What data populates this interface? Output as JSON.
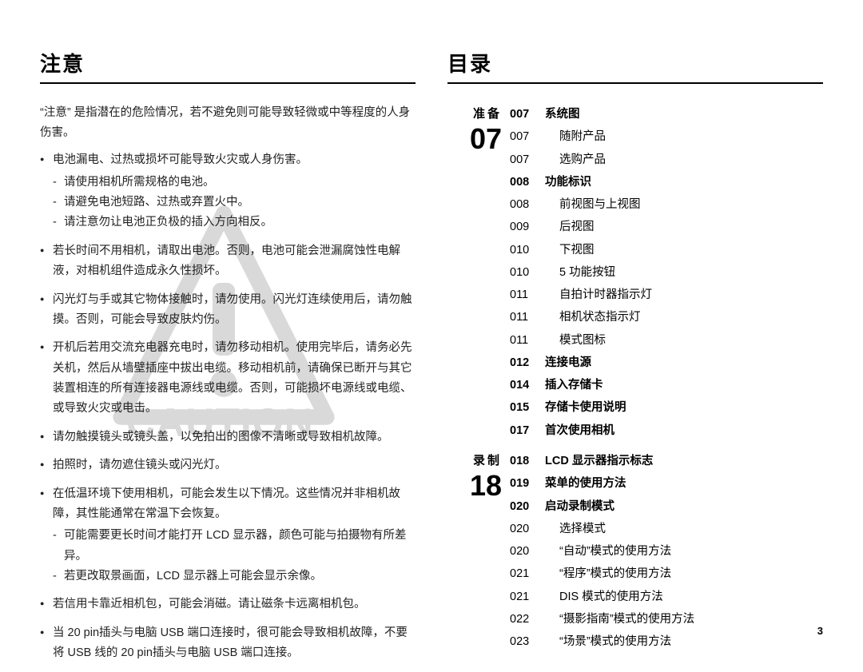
{
  "left": {
    "heading": "注意",
    "intro": "“注意” 是指潜在的危险情况，若不避免则可能导致轻微或中等程度的人身伤害。",
    "bullets": [
      {
        "text": "电池漏电、过热或损坏可能导致火灾或人身伤害。",
        "sub": [
          "请使用相机所需规格的电池。",
          "请避免电池短路、过热或弃置火中。",
          "请注意勿让电池正负极的插入方向相反。"
        ]
      },
      {
        "text": "若长时间不用相机，请取出电池。否则，电池可能会泄漏腐蚀性电解液，对相机组件造成永久性损坏。"
      },
      {
        "text": "闪光灯与手或其它物体接触时，请勿使用。闪光灯连续使用后，请勿触摸。否则，可能会导致皮肤灼伤。"
      },
      {
        "text": "开机后若用交流充电器充电时，请勿移动相机。使用完毕后，请务必先关机，然后从墙壁插座中拔出电缆。移动相机前，请确保已断开与其它装置相连的所有连接器电源线或电缆。否则，可能损坏电源线或电缆、或导致火灾或电击。"
      },
      {
        "text": "请勿触摸镜头或镜头盖，以免拍出的图像不清晰或导致相机故障。"
      },
      {
        "text": "拍照时，请勿遮住镜头或闪光灯。"
      },
      {
        "text": "在低温环境下使用相机，可能会发生以下情况。这些情况并非相机故障，其性能通常在常温下会恢复。",
        "sub": [
          "可能需要更长时间才能打开 LCD 显示器，颜色可能与拍摄物有所差异。",
          "若更改取景画面，LCD 显示器上可能会显示余像。"
        ]
      },
      {
        "text": "若信用卡靠近相机包，可能会消磁。请让磁条卡远离相机包。"
      },
      {
        "text": "当 20 pin插头与电脑 USB 端口连接时，很可能会导致相机故障，不要将 USB 线的 20 pin插头与电脑 USB 端口连接。"
      }
    ],
    "watermark": "CAUTION"
  },
  "right": {
    "heading": "目录",
    "sections": [
      {
        "label": "准备",
        "number": "07",
        "entries": [
          {
            "page": "007",
            "title": "系统图",
            "bold": true
          },
          {
            "page": "007",
            "title": "随附产品"
          },
          {
            "page": "007",
            "title": "选购产品"
          },
          {
            "page": "008",
            "title": "功能标识",
            "bold": true
          },
          {
            "page": "008",
            "title": "前视图与上视图"
          },
          {
            "page": "009",
            "title": "后视图"
          },
          {
            "page": "010",
            "title": "下视图"
          },
          {
            "page": "010",
            "title": "5 功能按钮"
          },
          {
            "page": "011",
            "title": "自拍计时器指示灯"
          },
          {
            "page": "011",
            "title": "相机状态指示灯"
          },
          {
            "page": "011",
            "title": "模式图标"
          },
          {
            "page": "012",
            "title": "连接电源",
            "bold": true
          },
          {
            "page": "014",
            "title": "插入存储卡",
            "bold": true
          },
          {
            "page": "015",
            "title": "存储卡使用说明",
            "bold": true
          },
          {
            "page": "017",
            "title": "首次使用相机",
            "bold": true
          }
        ]
      },
      {
        "label": "录制",
        "number": "18",
        "entries": [
          {
            "page": "018",
            "title": "LCD 显示器指示标志",
            "bold": true
          },
          {
            "page": "019",
            "title": "菜单的使用方法",
            "bold": true
          },
          {
            "page": "020",
            "title": "启动录制模式",
            "bold": true
          },
          {
            "page": "020",
            "title": "选择模式"
          },
          {
            "page": "020",
            "title": "“自动”模式的使用方法"
          },
          {
            "page": "021",
            "title": "“程序”模式的使用方法"
          },
          {
            "page": "021",
            "title": "DIS 模式的使用方法"
          },
          {
            "page": "022",
            "title": "“摄影指南”模式的使用方法"
          },
          {
            "page": "023",
            "title": "“场景”模式的使用方法"
          }
        ]
      }
    ]
  },
  "pageNumber": "3"
}
